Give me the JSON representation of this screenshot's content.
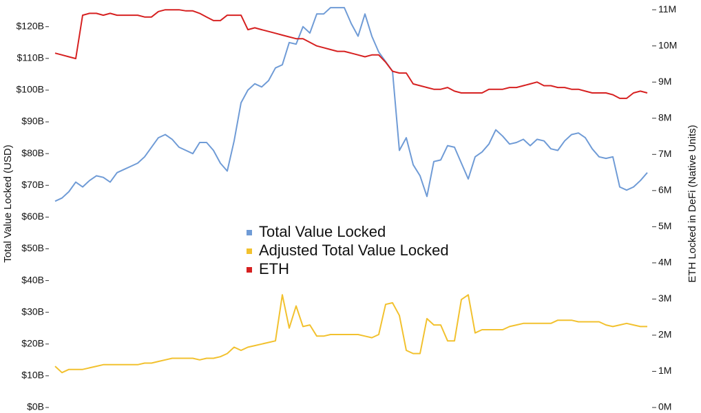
{
  "chart_data": {
    "type": "line",
    "categories": [
      null,
      null,
      null,
      null,
      null,
      null,
      null,
      null,
      null,
      null,
      null,
      null,
      null,
      null,
      null,
      null,
      null,
      null,
      null,
      null,
      null,
      null,
      null,
      null,
      null,
      null,
      null,
      null,
      null,
      null,
      null,
      null,
      null,
      null,
      null,
      null,
      null,
      null,
      null,
      null,
      null,
      null,
      null,
      null,
      null,
      null,
      null,
      null,
      null,
      null,
      null,
      null,
      null,
      null,
      null,
      null,
      null,
      null,
      null,
      null,
      null,
      null,
      null,
      null,
      null,
      null,
      null,
      null,
      null,
      null,
      null,
      null,
      null,
      null,
      null,
      null,
      null,
      null,
      null,
      null,
      null,
      null,
      null,
      null,
      null,
      null,
      null
    ],
    "y_label": "Total Value Locked (USD)",
    "y2_label": "ETH Locked in DeFi (Native Units)",
    "ylim": [
      0,
      128.4
    ],
    "yticks": [
      {
        "value": 0,
        "label": "$0B"
      },
      {
        "value": 10,
        "label": "$10B"
      },
      {
        "value": 20,
        "label": "$20B"
      },
      {
        "value": 30,
        "label": "$30B"
      },
      {
        "value": 40,
        "label": "$40B"
      },
      {
        "value": 50,
        "label": "$50B"
      },
      {
        "value": 60,
        "label": "$60B"
      },
      {
        "value": 70,
        "label": "$70B"
      },
      {
        "value": 80,
        "label": "$80B"
      },
      {
        "value": 90,
        "label": "$90B"
      },
      {
        "value": 100,
        "label": "$100B"
      },
      {
        "value": 110,
        "label": "$110B"
      },
      {
        "value": 120,
        "label": "$120B"
      }
    ],
    "y2lim": [
      0,
      11.27
    ],
    "y2ticks": [
      {
        "value": 0,
        "label": "0M"
      },
      {
        "value": 1,
        "label": "1M"
      },
      {
        "value": 2,
        "label": "2M"
      },
      {
        "value": 3,
        "label": "3M"
      },
      {
        "value": 4,
        "label": "4M"
      },
      {
        "value": 5,
        "label": "5M"
      },
      {
        "value": 6,
        "label": "6M"
      },
      {
        "value": 7,
        "label": "7M"
      },
      {
        "value": 8,
        "label": "8M"
      },
      {
        "value": 9,
        "label": "9M"
      },
      {
        "value": 10,
        "label": "10M"
      },
      {
        "value": 11,
        "label": "11M"
      }
    ],
    "legend_position": "center",
    "series": [
      {
        "name": "Total Value Locked",
        "color": "#6f9bd6",
        "values": [
          65,
          66,
          68,
          71,
          69.5,
          71.5,
          73,
          72.5,
          71,
          74,
          75,
          76,
          77,
          79,
          82,
          85,
          86,
          84.5,
          82,
          81,
          80,
          83.5,
          83.5,
          81,
          77,
          74.5,
          84,
          96,
          100,
          102,
          101,
          103,
          107,
          108,
          115,
          114.5,
          120,
          118,
          124,
          124,
          126,
          126,
          126,
          121,
          117,
          124,
          117,
          112,
          109,
          106,
          81,
          85,
          76.5,
          73,
          66.5,
          77.5,
          78,
          82.5,
          82,
          77,
          72,
          79,
          80.5,
          83,
          87.5,
          85.5,
          83,
          83.5,
          84.5,
          82.5,
          84.5,
          84,
          81.5,
          81,
          84,
          86,
          86.5,
          85,
          81.5,
          79,
          78.5,
          79,
          69.5,
          68.5,
          69.5,
          71.5,
          74
        ]
      },
      {
        "name": "Adjusted Total Value Locked",
        "color": "#f2c12e",
        "values": [
          13,
          11,
          12,
          12,
          12,
          12.5,
          13,
          13.5,
          13.5,
          13.5,
          13.5,
          13.5,
          13.5,
          14,
          14,
          14.5,
          15,
          15.5,
          15.5,
          15.5,
          15.5,
          15,
          15.5,
          15.5,
          16,
          17,
          19,
          18,
          19,
          19.5,
          20,
          20.5,
          21,
          35.5,
          25,
          32,
          25.5,
          26,
          22.5,
          22.5,
          23,
          23,
          23,
          23,
          23,
          22.5,
          22,
          23,
          32.5,
          33,
          29,
          18,
          17,
          17,
          28,
          26,
          26,
          21,
          21,
          34,
          35.5,
          23.5,
          24.5,
          24.5,
          24.5,
          24.5,
          25.5,
          26,
          26.5,
          26.5,
          26.5,
          26.5,
          26.5,
          27.5,
          27.5,
          27.5,
          27,
          27,
          27,
          27,
          26,
          25.5,
          26,
          26.5,
          26,
          25.5,
          25.5
        ]
      },
      {
        "name": "ETH",
        "color": "#d62020",
        "axis": "y2",
        "values": [
          9.8,
          9.75,
          9.7,
          9.65,
          10.85,
          10.9,
          10.9,
          10.85,
          10.9,
          10.85,
          10.85,
          10.85,
          10.85,
          10.8,
          10.8,
          10.95,
          11,
          11,
          11,
          10.97,
          10.97,
          10.9,
          10.8,
          10.7,
          10.7,
          10.85,
          10.85,
          10.85,
          10.45,
          10.5,
          10.45,
          10.4,
          10.35,
          10.3,
          10.25,
          10.2,
          10.2,
          10.1,
          10,
          9.95,
          9.9,
          9.85,
          9.85,
          9.8,
          9.75,
          9.7,
          9.75,
          9.75,
          9.55,
          9.3,
          9.25,
          9.25,
          8.95,
          8.9,
          8.85,
          8.8,
          8.8,
          8.85,
          8.75,
          8.7,
          8.7,
          8.7,
          8.7,
          8.8,
          8.8,
          8.8,
          8.85,
          8.85,
          8.9,
          8.95,
          9,
          8.9,
          8.9,
          8.85,
          8.85,
          8.8,
          8.8,
          8.75,
          8.7,
          8.7,
          8.7,
          8.65,
          8.55,
          8.55,
          8.7,
          8.75,
          8.7
        ]
      }
    ]
  }
}
